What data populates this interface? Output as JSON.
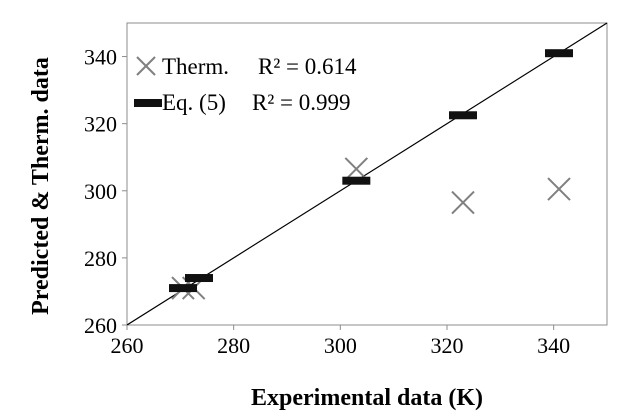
{
  "chart_data": {
    "type": "scatter",
    "xlabel": "Experimental data (K)",
    "ylabel": "Predicted & Therm. data",
    "xlim": [
      260,
      350
    ],
    "ylim": [
      260,
      350
    ],
    "xticks": [
      "260",
      "280",
      "300",
      "320",
      "340"
    ],
    "yticks": [
      "260",
      "280",
      "300",
      "320",
      "340"
    ],
    "grid": false,
    "legend_position": "top-left",
    "series": [
      {
        "name": "Therm.",
        "r2_label": "R² = 0.614",
        "marker": "x",
        "color": "#808080",
        "points": [
          {
            "x": 270.5,
            "y": 271
          },
          {
            "x": 272.5,
            "y": 271
          },
          {
            "x": 303,
            "y": 306.5
          },
          {
            "x": 323,
            "y": 296.5
          },
          {
            "x": 341,
            "y": 300.5
          }
        ]
      },
      {
        "name": "Eq. (5)",
        "r2_label": "R² = 0.999",
        "marker": "dash",
        "color": "#111111",
        "points": [
          {
            "x": 270.5,
            "y": 271
          },
          {
            "x": 273.5,
            "y": 274
          },
          {
            "x": 303,
            "y": 303
          },
          {
            "x": 323,
            "y": 322.5
          },
          {
            "x": 341,
            "y": 341
          }
        ]
      }
    ],
    "reference_line": {
      "from": [
        260,
        260
      ],
      "to": [
        350,
        350
      ],
      "color": "#000000"
    }
  }
}
